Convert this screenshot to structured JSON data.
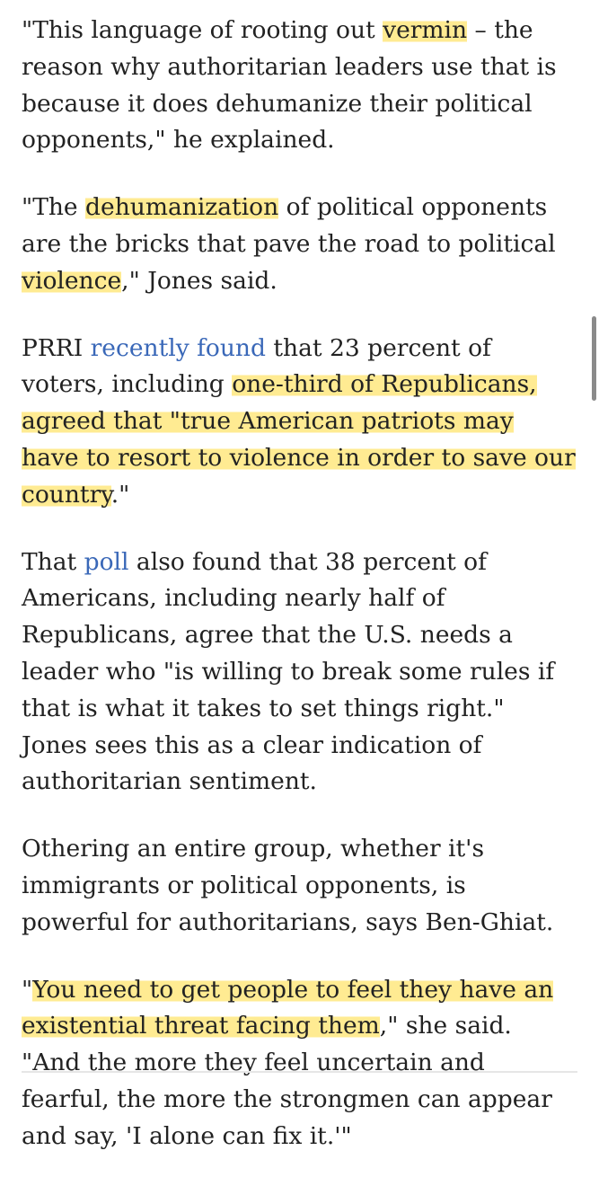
{
  "paragraphs": [
    {
      "segments": [
        {
          "text": "\"This language of rooting out ",
          "style": "plain"
        },
        {
          "text": "vermin",
          "style": "highlight"
        },
        {
          "text": " – the reason why authoritarian leaders use that is because it does dehumanize their political opponents,\" he explained.",
          "style": "plain"
        }
      ]
    },
    {
      "segments": [
        {
          "text": "\"The ",
          "style": "plain"
        },
        {
          "text": "dehumanization",
          "style": "highlight"
        },
        {
          "text": " of political opponents are the bricks that pave the road to political ",
          "style": "plain"
        },
        {
          "text": "violence",
          "style": "highlight"
        },
        {
          "text": ",\" Jones said.",
          "style": "plain"
        }
      ]
    },
    {
      "segments": [
        {
          "text": "PRRI ",
          "style": "plain"
        },
        {
          "text": "recently found",
          "style": "link"
        },
        {
          "text": " that 23 percent of voters, including ",
          "style": "plain"
        },
        {
          "text": "one-third of Republicans, agreed that \"true American patriots may have to resort to violence in order to save our country",
          "style": "highlight"
        },
        {
          "text": ".\"",
          "style": "plain"
        }
      ]
    },
    {
      "segments": [
        {
          "text": "That ",
          "style": "plain"
        },
        {
          "text": "poll",
          "style": "link"
        },
        {
          "text": " also found that 38 percent of Americans, including nearly half of Republicans, agree that the U.S. needs a leader who \"is willing to break some rules if that is what it takes to set things right.\" Jones sees this as a clear indication of authoritarian sentiment.",
          "style": "plain"
        }
      ]
    },
    {
      "segments": [
        {
          "text": "Othering an entire group, whether it's immigrants or political opponents, is powerful for authoritarians, says Ben-Ghiat.",
          "style": "plain"
        }
      ]
    },
    {
      "segments": [
        {
          "text": "\"",
          "style": "plain"
        },
        {
          "text": "You need to get people to feel they have an existential threat facing them",
          "style": "highlight"
        },
        {
          "text": ",\" she said. \"And the more they feel uncertain and fearful, the more the strongmen can appear and say, 'I alone can fix it.'\"",
          "style": "plain"
        }
      ]
    }
  ],
  "colors": {
    "text": "#222222",
    "link": "#3a68b8",
    "highlight": "#ffe46e"
  }
}
